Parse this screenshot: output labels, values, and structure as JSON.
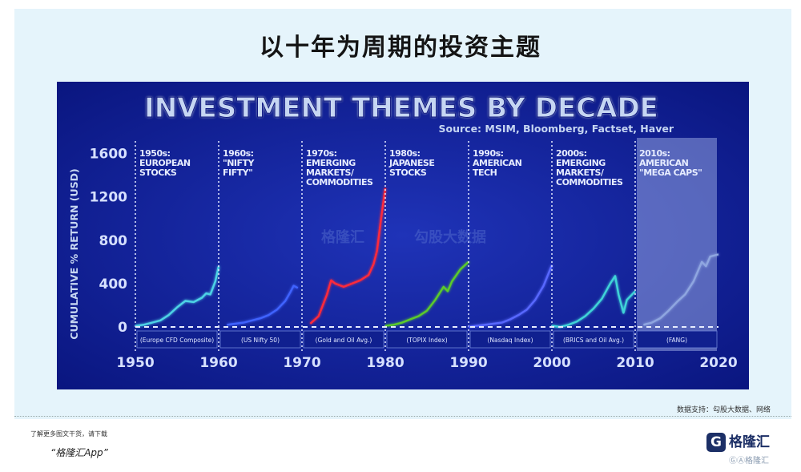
{
  "page": {
    "title": "以十年为周期的投资主题",
    "credit": "数据支持：勾股大数据、网络",
    "promo": "了解更多图文干货，请下载",
    "app_name": "“格隆汇App”",
    "logo_text": "格隆汇",
    "logo_sub": "ⒼⒶ格隆汇",
    "watermark_left": "格隆汇",
    "watermark_right": "勾股大数据"
  },
  "colors": {
    "background": "#0b1a8e",
    "title": "#c6d6f2",
    "cyan": "#4ed3e6",
    "blue": "#3f63ff",
    "red": "#ff2a3a",
    "green": "#5bcc2a",
    "purple": "#5868ff",
    "teal": "#3fd4d8",
    "grey": "#8fa6e0",
    "page_bg": "#e5f4fb"
  },
  "chart_data": {
    "type": "line",
    "title": "INVESTMENT THEMES BY DECADE",
    "subtitle": "Source: MSIM, Bloomberg, Factset, Haver",
    "ylabel": "CUMULATIVE % RETURN (USD)",
    "xlim": [
      1950,
      2020
    ],
    "ylim": [
      0,
      1700
    ],
    "x_ticks": [
      "1950",
      "1960",
      "1970",
      "1980",
      "1990",
      "2000",
      "2010",
      "2020"
    ],
    "y_ticks": [
      "0",
      "400",
      "800",
      "1200",
      "1600"
    ],
    "decades": [
      {
        "start": 1950,
        "end": 1960,
        "theme": [
          "1950s:",
          "EUROPEAN",
          "STOCKS"
        ],
        "index": "(Europe CFD Composite)",
        "color": "#4ed3e6",
        "points": [
          [
            1950,
            10
          ],
          [
            1951,
            20
          ],
          [
            1952,
            40
          ],
          [
            1953,
            60
          ],
          [
            1954,
            110
          ],
          [
            1955,
            180
          ],
          [
            1956,
            240
          ],
          [
            1957,
            230
          ],
          [
            1958,
            270
          ],
          [
            1958.5,
            310
          ],
          [
            1959,
            300
          ],
          [
            1959.6,
            420
          ],
          [
            1960,
            560
          ]
        ]
      },
      {
        "start": 1960,
        "end": 1970,
        "theme": [
          "1960s:",
          "\"NIFTY",
          "FIFTY\""
        ],
        "index": "(US Nifty 50)",
        "color": "#3f63ff",
        "points": [
          [
            1961,
            20
          ],
          [
            1962,
            30
          ],
          [
            1963,
            40
          ],
          [
            1964,
            60
          ],
          [
            1965,
            80
          ],
          [
            1966,
            110
          ],
          [
            1967,
            160
          ],
          [
            1968,
            240
          ],
          [
            1968.6,
            320
          ],
          [
            1969,
            380
          ],
          [
            1969.5,
            360
          ]
        ]
      },
      {
        "start": 1970,
        "end": 1980,
        "theme": [
          "1970s:",
          "EMERGING",
          "MARKETS/",
          "COMMODITIES"
        ],
        "index": "(Gold and Oil Avg.)",
        "color": "#ff2a3a",
        "points": [
          [
            1971,
            30
          ],
          [
            1972,
            100
          ],
          [
            1973,
            300
          ],
          [
            1973.5,
            430
          ],
          [
            1974,
            400
          ],
          [
            1975,
            370
          ],
          [
            1976,
            400
          ],
          [
            1977,
            430
          ],
          [
            1978,
            480
          ],
          [
            1978.6,
            580
          ],
          [
            1979,
            700
          ],
          [
            1979.5,
            1000
          ],
          [
            1980,
            1280
          ]
        ]
      },
      {
        "start": 1980,
        "end": 1990,
        "theme": [
          "1980s:",
          "JAPANESE",
          "STOCKS"
        ],
        "index": "(TOPIX Index)",
        "color": "#5bcc2a",
        "points": [
          [
            1980,
            10
          ],
          [
            1981,
            20
          ],
          [
            1982,
            40
          ],
          [
            1983,
            70
          ],
          [
            1984,
            100
          ],
          [
            1985,
            150
          ],
          [
            1986,
            250
          ],
          [
            1987,
            370
          ],
          [
            1987.5,
            330
          ],
          [
            1988,
            420
          ],
          [
            1989,
            530
          ],
          [
            1990,
            600
          ]
        ]
      },
      {
        "start": 1990,
        "end": 2000,
        "theme": [
          "1990s:",
          "AMERICAN",
          "TECH"
        ],
        "index": "(Nasdaq Index)",
        "color": "#5868ff",
        "points": [
          [
            1990,
            0
          ],
          [
            1991,
            10
          ],
          [
            1992,
            20
          ],
          [
            1993,
            30
          ],
          [
            1994,
            40
          ],
          [
            1995,
            70
          ],
          [
            1996,
            110
          ],
          [
            1997,
            160
          ],
          [
            1998,
            250
          ],
          [
            1999,
            380
          ],
          [
            2000,
            570
          ]
        ]
      },
      {
        "start": 2000,
        "end": 2010,
        "theme": [
          "2000s:",
          "EMERGING",
          "MARKETS/",
          "COMMODITIES"
        ],
        "index": "(BRICS and Oil Avg.)",
        "color": "#3fd4d8",
        "points": [
          [
            2000,
            10
          ],
          [
            2001,
            0
          ],
          [
            2002,
            20
          ],
          [
            2003,
            50
          ],
          [
            2004,
            100
          ],
          [
            2005,
            170
          ],
          [
            2006,
            260
          ],
          [
            2007,
            400
          ],
          [
            2007.6,
            470
          ],
          [
            2008,
            300
          ],
          [
            2008.6,
            130
          ],
          [
            2009,
            250
          ],
          [
            2010,
            330
          ]
        ]
      },
      {
        "start": 2010,
        "end": 2020,
        "theme": [
          "2010s:",
          "AMERICAN",
          "\"MEGA CAPS\""
        ],
        "index": "(FANG)",
        "color": "#8fa6e0",
        "points": [
          [
            2011,
            20
          ],
          [
            2012,
            40
          ],
          [
            2013,
            80
          ],
          [
            2014,
            150
          ],
          [
            2015,
            230
          ],
          [
            2016,
            300
          ],
          [
            2017,
            420
          ],
          [
            2018,
            600
          ],
          [
            2018.5,
            560
          ],
          [
            2019,
            650
          ],
          [
            2020,
            670
          ]
        ]
      }
    ]
  }
}
